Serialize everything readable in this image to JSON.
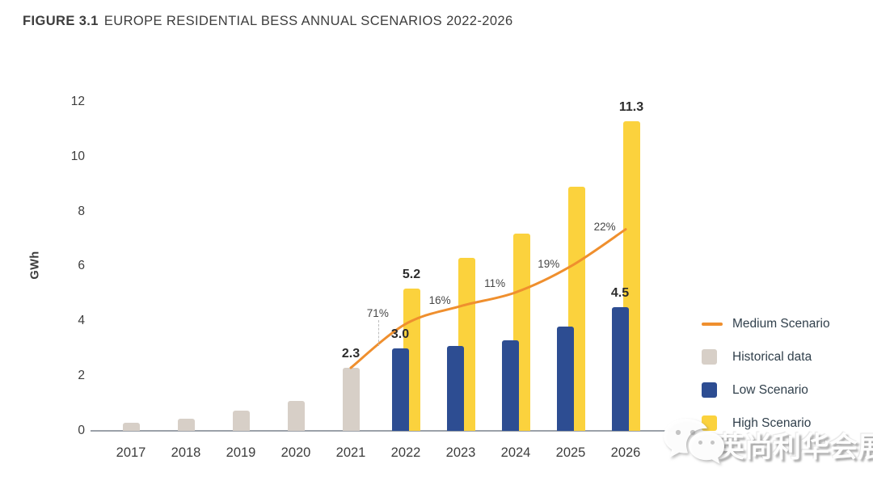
{
  "title": {
    "prefix": "FIGURE 3.1",
    "text": "EUROPE RESIDENTIAL BESS ANNUAL SCENARIOS 2022-2026"
  },
  "chart_data": {
    "type": "bar",
    "title": "FIGURE 3.1 EUROPE RESIDENTIAL BESS ANNUAL SCENARIOS 2022-2026",
    "xlabel": "",
    "ylabel": "GWh",
    "ylim": [
      0,
      12
    ],
    "yticks": [
      0,
      2,
      4,
      6,
      8,
      10,
      12
    ],
    "grid": "off",
    "categories": [
      "2017",
      "2018",
      "2019",
      "2020",
      "2021",
      "2022",
      "2023",
      "2024",
      "2025",
      "2026"
    ],
    "series": [
      {
        "name": "Historical data",
        "type": "bar",
        "color": "#d7cfc7",
        "values": [
          0.3,
          0.45,
          0.75,
          1.1,
          2.3,
          null,
          null,
          null,
          null,
          null
        ]
      },
      {
        "name": "Low Scenario",
        "type": "bar",
        "color": "#2d4d92",
        "values": [
          null,
          null,
          null,
          null,
          null,
          3.0,
          3.1,
          3.3,
          3.8,
          4.5
        ]
      },
      {
        "name": "High Scenario",
        "type": "bar",
        "color": "#fbd23d",
        "values": [
          null,
          null,
          null,
          null,
          null,
          5.2,
          6.3,
          7.2,
          8.9,
          11.3
        ]
      },
      {
        "name": "Medium Scenario",
        "type": "line",
        "color": "#ef8f2e",
        "x": [
          2021,
          2022,
          2023,
          2024,
          2025,
          2026
        ],
        "values": [
          2.3,
          3.9,
          4.55,
          5.05,
          6.0,
          7.35
        ]
      }
    ],
    "bar_labels": [
      {
        "series": "Historical data",
        "category": "2021",
        "text": "2.3"
      },
      {
        "series": "Low Scenario",
        "category": "2022",
        "text": "3.0"
      },
      {
        "series": "High Scenario",
        "category": "2022",
        "text": "5.2"
      },
      {
        "series": "Low Scenario",
        "category": "2026",
        "text": "4.5"
      },
      {
        "series": "High Scenario",
        "category": "2026",
        "text": "11.3"
      }
    ],
    "growth_annotations": [
      {
        "text": "71%",
        "x": 2021.49,
        "y": 4.27,
        "dash": {
          "x": 2021.5,
          "y1": 4.05,
          "y2": 3.1
        }
      },
      {
        "text": "16%",
        "x": 2022.62,
        "y": 4.75
      },
      {
        "text": "11%",
        "x": 2023.62,
        "y": 5.37
      },
      {
        "text": "19%",
        "x": 2024.6,
        "y": 6.07
      },
      {
        "text": "22%",
        "x": 2025.62,
        "y": 7.43
      }
    ],
    "legend": {
      "position": "right",
      "items": [
        {
          "label": "Medium Scenario",
          "swatch": "line",
          "color": "#ef8f2e"
        },
        {
          "label": "Historical data",
          "swatch": "square",
          "color": "#d7cfc7"
        },
        {
          "label": "Low Scenario",
          "swatch": "square",
          "color": "#2d4d92"
        },
        {
          "label": "High Scenario",
          "swatch": "square",
          "color": "#fbd23d"
        }
      ]
    }
  },
  "watermark": {
    "text": "英尚利华会展",
    "icon": "wechat-icon"
  }
}
